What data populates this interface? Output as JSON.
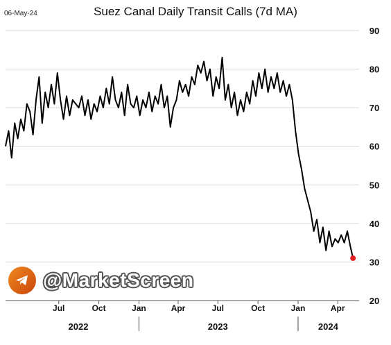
{
  "date_stamp": "06-May-24",
  "watermark": {
    "text": "@MarketScreen",
    "icon": "telegram-icon"
  },
  "chart_data": {
    "type": "line",
    "title": "Suez Canal Daily Transit Calls (7d MA)",
    "xlabel": "",
    "ylabel": "",
    "y_axis_side": "right",
    "ylim": [
      20,
      90
    ],
    "yticks": [
      20,
      30,
      40,
      50,
      60,
      70,
      80,
      90
    ],
    "xlim": [
      "2022-03-01",
      "2024-05-20"
    ],
    "month_ticks": [
      {
        "date": "2022-07-01",
        "label": "Jul"
      },
      {
        "date": "2022-10-01",
        "label": "Oct"
      },
      {
        "date": "2023-01-01",
        "label": "Jan"
      },
      {
        "date": "2023-04-01",
        "label": "Apr"
      },
      {
        "date": "2023-07-01",
        "label": "Jul"
      },
      {
        "date": "2023-10-01",
        "label": "Oct"
      },
      {
        "date": "2024-01-01",
        "label": "Jan"
      },
      {
        "date": "2024-04-01",
        "label": "Apr"
      }
    ],
    "year_labels": [
      {
        "label": "2022",
        "date": "2022-08-15"
      },
      {
        "label": "2023",
        "date": "2023-07-01"
      },
      {
        "label": "2024",
        "date": "2024-03-10"
      }
    ],
    "year_separators": [
      "2023-01-01",
      "2024-01-01"
    ],
    "grid": "horizontal",
    "legend": "none",
    "colors": {
      "line": "#000000",
      "last_point": "#e02020",
      "grid": "#d9d9d9"
    },
    "series": [
      {
        "points": [
          [
            "2022-03-01",
            60
          ],
          [
            "2022-03-08",
            64
          ],
          [
            "2022-03-15",
            57
          ],
          [
            "2022-03-22",
            66
          ],
          [
            "2022-03-29",
            62
          ],
          [
            "2022-04-05",
            67
          ],
          [
            "2022-04-12",
            64
          ],
          [
            "2022-04-19",
            71
          ],
          [
            "2022-04-26",
            69
          ],
          [
            "2022-05-03",
            63
          ],
          [
            "2022-05-10",
            72
          ],
          [
            "2022-05-17",
            78
          ],
          [
            "2022-05-24",
            66
          ],
          [
            "2022-05-31",
            74
          ],
          [
            "2022-06-07",
            70
          ],
          [
            "2022-06-14",
            76
          ],
          [
            "2022-06-21",
            71
          ],
          [
            "2022-06-28",
            79
          ],
          [
            "2022-07-05",
            72
          ],
          [
            "2022-07-12",
            67
          ],
          [
            "2022-07-19",
            73
          ],
          [
            "2022-07-26",
            68
          ],
          [
            "2022-08-02",
            72
          ],
          [
            "2022-08-09",
            71
          ],
          [
            "2022-08-16",
            70
          ],
          [
            "2022-08-23",
            73
          ],
          [
            "2022-08-30",
            68
          ],
          [
            "2022-09-06",
            72
          ],
          [
            "2022-09-13",
            67
          ],
          [
            "2022-09-20",
            71
          ],
          [
            "2022-09-27",
            69
          ],
          [
            "2022-10-04",
            73
          ],
          [
            "2022-10-11",
            70
          ],
          [
            "2022-10-18",
            75
          ],
          [
            "2022-10-25",
            71
          ],
          [
            "2022-11-01",
            78
          ],
          [
            "2022-11-08",
            72
          ],
          [
            "2022-11-15",
            70
          ],
          [
            "2022-11-22",
            74
          ],
          [
            "2022-11-29",
            68
          ],
          [
            "2022-12-06",
            76
          ],
          [
            "2022-12-13",
            71
          ],
          [
            "2022-12-20",
            70
          ],
          [
            "2022-12-27",
            73
          ],
          [
            "2023-01-03",
            68
          ],
          [
            "2023-01-10",
            72
          ],
          [
            "2023-01-17",
            70
          ],
          [
            "2023-01-24",
            74
          ],
          [
            "2023-01-31",
            69
          ],
          [
            "2023-02-07",
            73
          ],
          [
            "2023-02-14",
            71
          ],
          [
            "2023-02-21",
            76
          ],
          [
            "2023-02-28",
            70
          ],
          [
            "2023-03-07",
            73
          ],
          [
            "2023-03-14",
            65
          ],
          [
            "2023-03-21",
            70
          ],
          [
            "2023-03-28",
            72
          ],
          [
            "2023-04-04",
            77
          ],
          [
            "2023-04-11",
            74
          ],
          [
            "2023-04-18",
            76
          ],
          [
            "2023-04-25",
            73
          ],
          [
            "2023-05-02",
            78
          ],
          [
            "2023-05-09",
            76
          ],
          [
            "2023-05-16",
            81
          ],
          [
            "2023-05-23",
            79
          ],
          [
            "2023-05-30",
            82
          ],
          [
            "2023-06-06",
            77
          ],
          [
            "2023-06-13",
            80
          ],
          [
            "2023-06-20",
            73
          ],
          [
            "2023-06-27",
            78
          ],
          [
            "2023-07-04",
            75
          ],
          [
            "2023-07-11",
            83
          ],
          [
            "2023-07-18",
            72
          ],
          [
            "2023-07-25",
            76
          ],
          [
            "2023-08-01",
            70
          ],
          [
            "2023-08-08",
            74
          ],
          [
            "2023-08-15",
            68
          ],
          [
            "2023-08-22",
            72
          ],
          [
            "2023-08-29",
            69
          ],
          [
            "2023-09-05",
            74
          ],
          [
            "2023-09-12",
            71
          ],
          [
            "2023-09-19",
            77
          ],
          [
            "2023-09-26",
            73
          ],
          [
            "2023-10-03",
            79
          ],
          [
            "2023-10-10",
            75
          ],
          [
            "2023-10-17",
            80
          ],
          [
            "2023-10-24",
            74
          ],
          [
            "2023-10-31",
            78
          ],
          [
            "2023-11-07",
            75
          ],
          [
            "2023-11-14",
            79
          ],
          [
            "2023-11-21",
            74
          ],
          [
            "2023-11-28",
            77
          ],
          [
            "2023-12-05",
            73
          ],
          [
            "2023-12-12",
            76
          ],
          [
            "2023-12-19",
            72
          ],
          [
            "2023-12-26",
            64
          ],
          [
            "2024-01-02",
            58
          ],
          [
            "2024-01-09",
            54
          ],
          [
            "2024-01-16",
            49
          ],
          [
            "2024-01-23",
            46
          ],
          [
            "2024-01-30",
            43
          ],
          [
            "2024-02-06",
            38
          ],
          [
            "2024-02-13",
            41
          ],
          [
            "2024-02-20",
            35
          ],
          [
            "2024-02-27",
            39
          ],
          [
            "2024-03-05",
            33
          ],
          [
            "2024-03-12",
            38
          ],
          [
            "2024-03-19",
            34
          ],
          [
            "2024-03-26",
            36
          ],
          [
            "2024-04-02",
            35
          ],
          [
            "2024-04-09",
            37
          ],
          [
            "2024-04-16",
            35
          ],
          [
            "2024-04-23",
            38
          ],
          [
            "2024-04-30",
            34
          ],
          [
            "2024-05-06",
            31
          ]
        ]
      }
    ]
  }
}
